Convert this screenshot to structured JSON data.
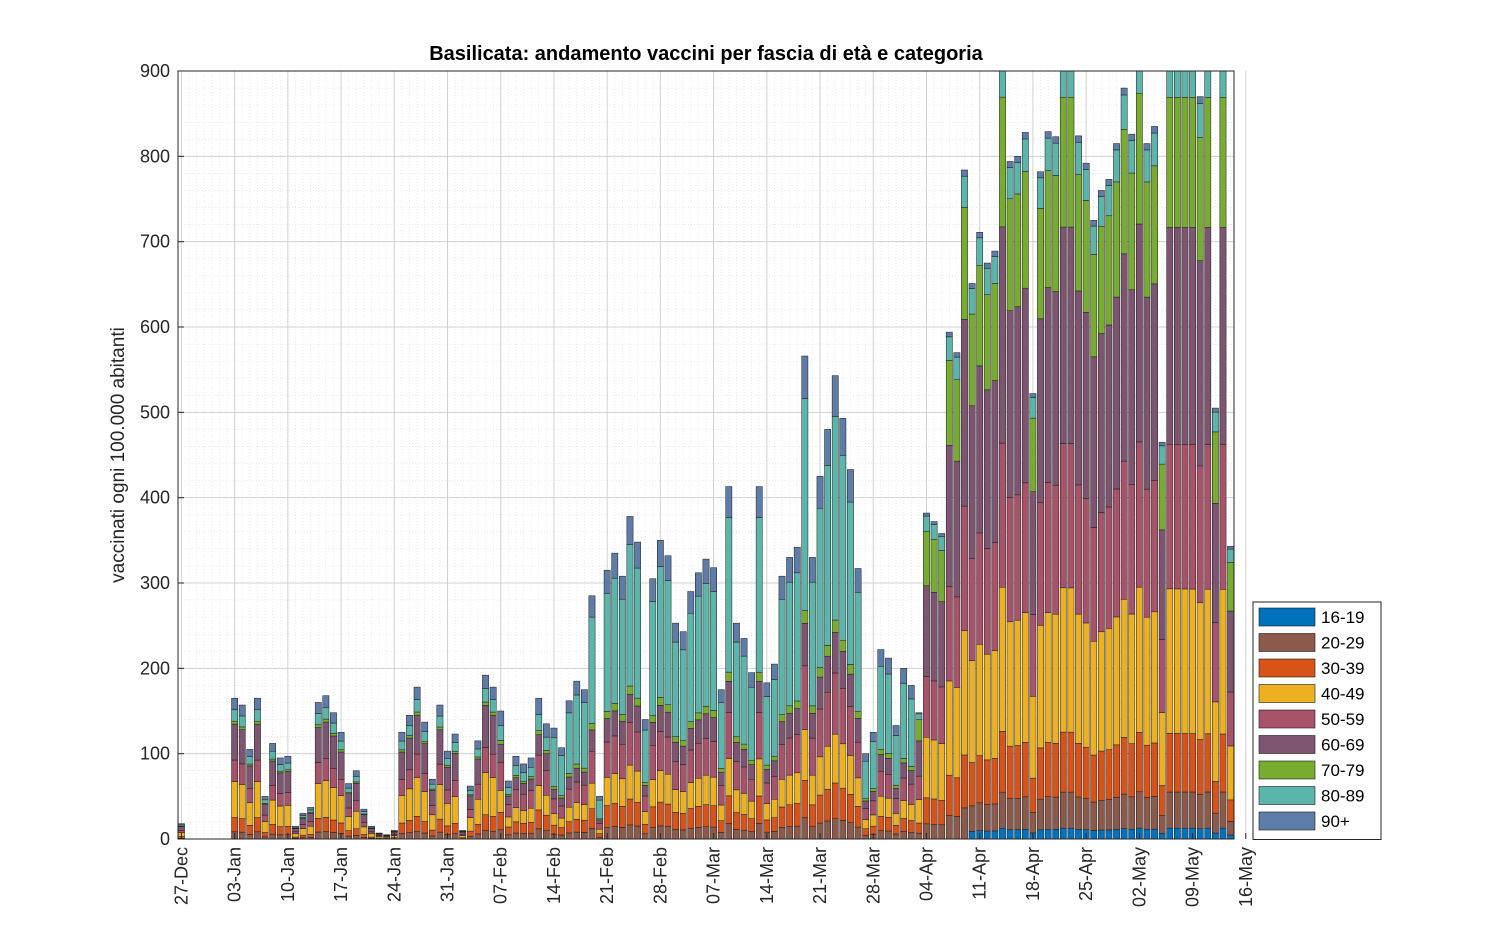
{
  "chart_data": {
    "type": "bar",
    "stacked": true,
    "title": "Basilicata: andamento vaccini per fascia di età e categoria",
    "ylabel": "vaccinati ogni 100.000 abitanti",
    "xlabel": "",
    "ylim": [
      0,
      900
    ],
    "yticks": [
      0,
      100,
      200,
      300,
      400,
      500,
      600,
      700,
      800,
      900
    ],
    "x_start": "27-Dec",
    "x_tick_labels": [
      "27-Dec",
      "03-Jan",
      "10-Jan",
      "17-Jan",
      "24-Jan",
      "31-Jan",
      "07-Feb",
      "14-Feb",
      "21-Feb",
      "28-Feb",
      "07-Mar",
      "14-Mar",
      "21-Mar",
      "28-Mar",
      "04-Apr",
      "11-Apr",
      "18-Apr",
      "25-Apr",
      "02-May",
      "09-May",
      "16-May"
    ],
    "grid": true,
    "minor_grid": true,
    "legend_position": "right",
    "series": [
      {
        "name": "16-19",
        "color": "#0072BD"
      },
      {
        "name": "20-29",
        "color": "#8C5A4B"
      },
      {
        "name": "30-39",
        "color": "#D95319"
      },
      {
        "name": "40-49",
        "color": "#EDB120"
      },
      {
        "name": "50-59",
        "color": "#A8536A"
      },
      {
        "name": "60-69",
        "color": "#7E5570"
      },
      {
        "name": "70-79",
        "color": "#77AC30"
      },
      {
        "name": "80-89",
        "color": "#5BB5AA"
      },
      {
        "name": "90+",
        "color": "#5E7CA8"
      }
    ],
    "daily_totals": [
      18,
      0,
      0,
      0,
      0,
      0,
      0,
      165,
      157,
      105,
      165,
      50,
      112,
      95,
      97,
      15,
      30,
      37,
      160,
      168,
      148,
      125,
      65,
      80,
      35,
      15,
      7,
      5,
      10,
      125,
      145,
      178,
      137,
      70,
      157,
      103,
      123,
      10,
      62,
      115,
      192,
      178,
      150,
      68,
      97,
      88,
      95,
      165,
      135,
      130,
      107,
      162,
      185,
      175,
      285,
      50,
      315,
      335,
      308,
      378,
      348,
      140,
      305,
      350,
      332,
      253,
      243,
      290,
      312,
      328,
      318,
      175,
      413,
      253,
      235,
      195,
      413,
      183,
      205,
      308,
      330,
      342,
      566,
      330,
      425,
      480,
      543,
      493,
      433,
      317,
      100,
      125,
      222,
      212,
      133,
      200,
      180,
      148,
      382,
      372,
      358,
      594,
      570,
      784,
      651,
      711,
      675,
      689,
      920,
      794,
      800,
      828,
      522,
      782,
      829,
      823,
      920,
      920,
      824,
      792,
      725,
      760,
      773,
      815,
      880,
      826,
      925,
      815,
      835,
      465,
      920,
      920,
      920,
      920,
      870,
      920,
      505,
      920,
      343
    ],
    "daily_mix": {
      "16-19": [
        0,
        0,
        0,
        0,
        0,
        0,
        0,
        0,
        0,
        0,
        0,
        0,
        0,
        0,
        0,
        0,
        0,
        0,
        0,
        0,
        0,
        0,
        0,
        0,
        0,
        0,
        0,
        0,
        0,
        0,
        0,
        0,
        0,
        0,
        0,
        0,
        0,
        0,
        0,
        0,
        0,
        0,
        0,
        0,
        0,
        0,
        0,
        0,
        0,
        0,
        0,
        0,
        0,
        0,
        0,
        0,
        0,
        0,
        0,
        0,
        0,
        0,
        0,
        0,
        0,
        0,
        0,
        0,
        0,
        0,
        0,
        0,
        0,
        0,
        0,
        0,
        0,
        0,
        0,
        0,
        0,
        0,
        0,
        0,
        0,
        0,
        0,
        0,
        0,
        0,
        0,
        0,
        0,
        0,
        0,
        0,
        0,
        0,
        0,
        0,
        0,
        0,
        0,
        0,
        0,
        0,
        0,
        0,
        0,
        0,
        0,
        0,
        0,
        0,
        0,
        0,
        0,
        0,
        0,
        0,
        0,
        0,
        0,
        0,
        0,
        0,
        0,
        0,
        0,
        0,
        0,
        0,
        0,
        0,
        0,
        0,
        0,
        0,
        0
      ],
      "20-29": [
        2,
        0,
        0,
        0,
        0,
        0,
        0,
        10,
        8,
        6,
        10,
        4,
        8,
        6,
        6,
        2,
        3,
        3,
        10,
        10,
        9,
        8,
        5,
        5,
        3,
        1,
        1,
        0,
        1,
        8,
        9,
        11,
        9,
        5,
        10,
        7,
        8,
        1,
        4,
        8,
        13,
        12,
        10,
        5,
        7,
        6,
        7,
        10,
        8,
        8,
        7,
        10,
        11,
        11,
        13,
        4,
        14,
        15,
        14,
        16,
        15,
        8,
        13,
        15,
        14,
        12,
        11,
        13,
        14,
        14,
        14,
        9,
        15,
        11,
        10,
        9,
        15,
        8,
        9,
        12,
        13,
        13,
        20,
        13,
        16,
        18,
        20,
        18,
        16,
        12,
        5,
        6,
        10,
        10,
        6,
        9,
        8,
        7,
        13,
        13,
        12,
        18,
        17,
        22,
        19,
        20,
        19,
        19,
        24,
        20,
        21,
        21,
        14,
        20,
        21,
        21,
        24,
        24,
        21,
        20,
        19,
        20,
        20,
        21,
        22,
        21,
        23,
        21,
        21,
        12,
        23,
        23,
        23,
        23,
        22,
        23,
        13,
        23,
        9
      ]
    }
  }
}
